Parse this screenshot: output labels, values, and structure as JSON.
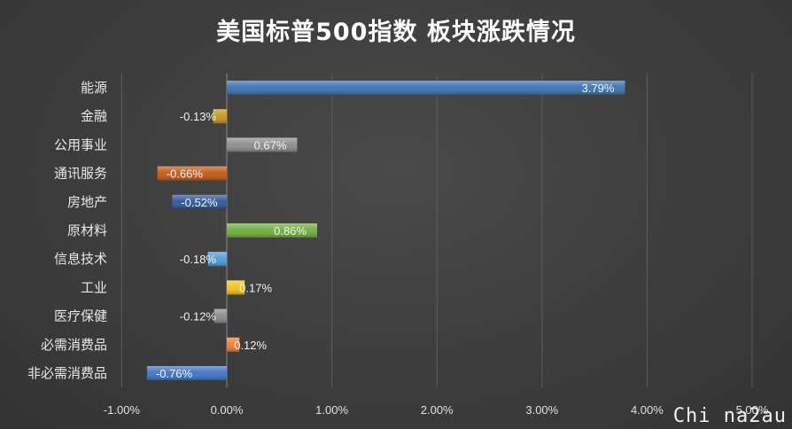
{
  "chart_data": {
    "type": "bar",
    "orientation": "horizontal",
    "title": "美国标普500指数 板块涨跌情况",
    "categories": [
      "能源",
      "金融",
      "公用事业",
      "通讯服务",
      "房地产",
      "原材料",
      "信息技术",
      "工业",
      "医疗保健",
      "必需消费品",
      "非必需消费品"
    ],
    "values": [
      3.79,
      -0.13,
      0.67,
      -0.66,
      -0.52,
      0.86,
      -0.18,
      0.17,
      -0.12,
      0.12,
      -0.76
    ],
    "value_labels": [
      "3.79%",
      "-0.13%",
      "0.67%",
      "-0.66%",
      "-0.52%",
      "0.86%",
      "-0.18%",
      "0.17%",
      "-0.12%",
      "0.12%",
      "-0.76%"
    ],
    "colors": [
      "#3a72b0",
      "#c8961a",
      "#8c8c8c",
      "#c05a18",
      "#2f5597",
      "#6fae3e",
      "#4f9ad8",
      "#f2c21e",
      "#8a8a8a",
      "#ed7d31",
      "#3e73c4"
    ],
    "xlim": [
      -1,
      5
    ],
    "x_ticks": [
      -1,
      0,
      1,
      2,
      3,
      4,
      5
    ],
    "x_tick_labels": [
      "-1.00%",
      "0.00%",
      "1.00%",
      "2.00%",
      "3.00%",
      "4.00%",
      "5.00%"
    ],
    "grid": "vertical",
    "legend": "none"
  },
  "watermark": "Chi na2au"
}
